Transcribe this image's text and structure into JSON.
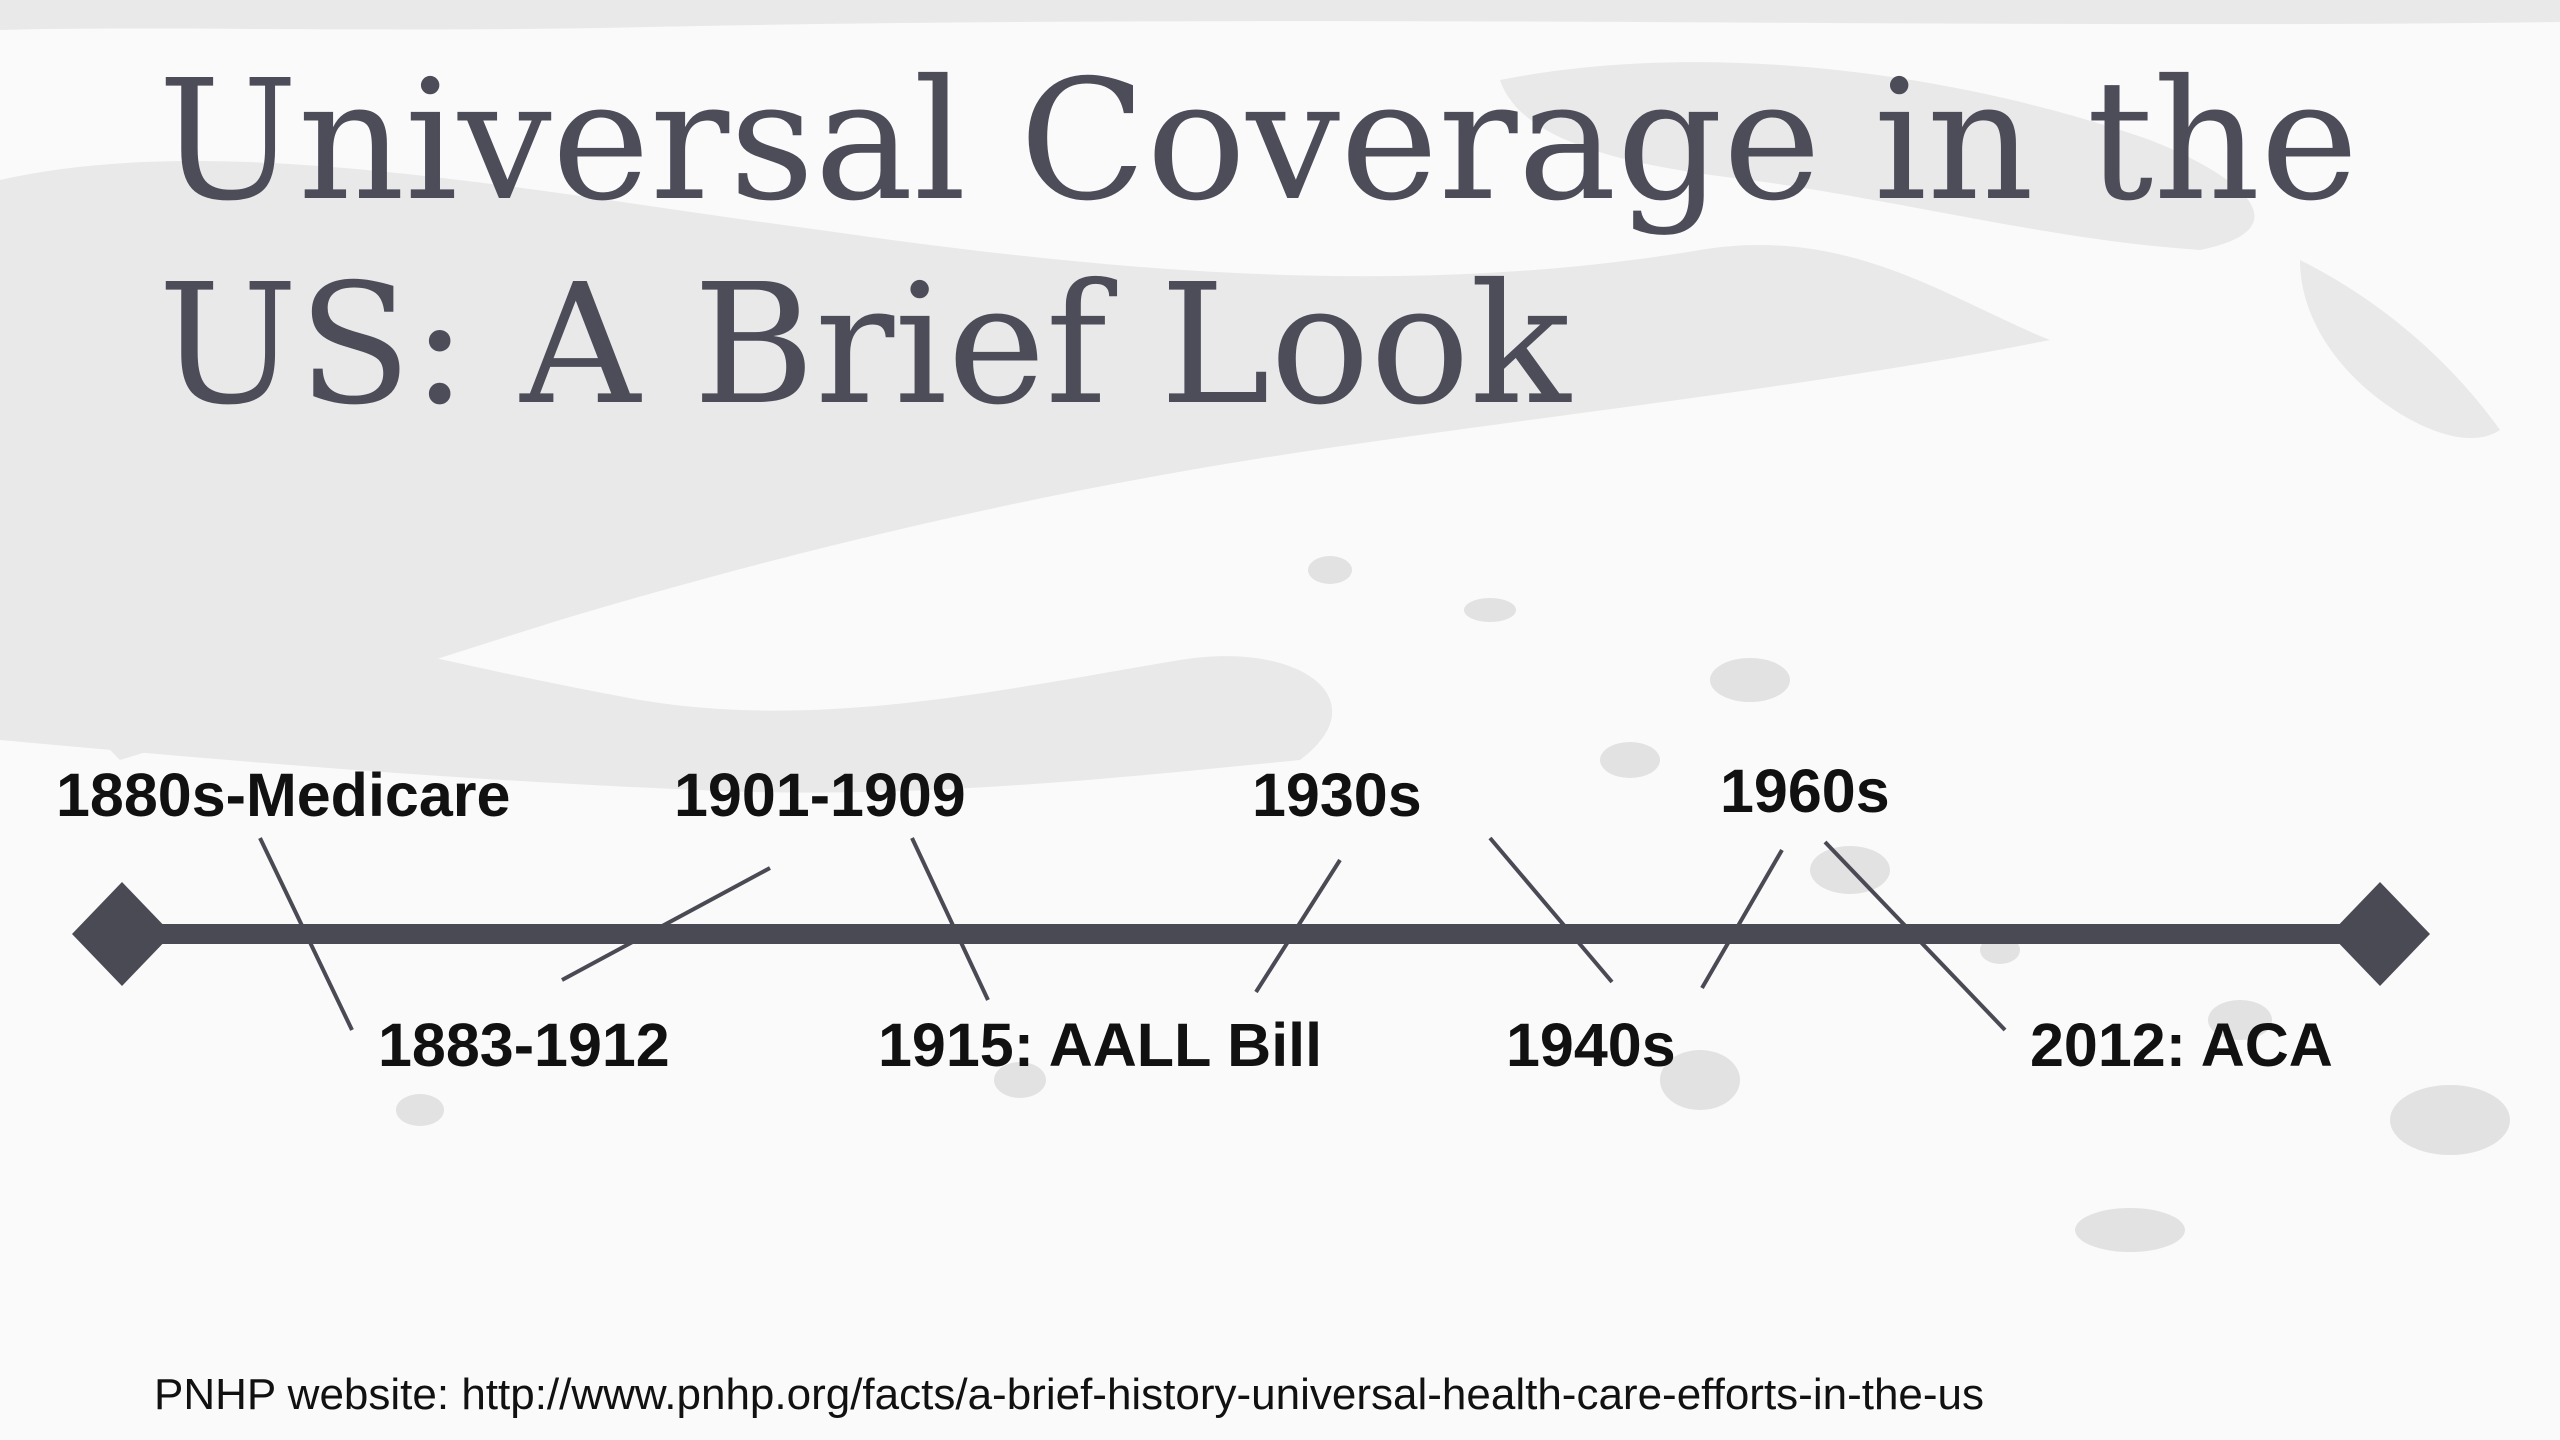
{
  "title": {
    "line1": "Universal Coverage in the",
    "line2": "US: A Brief Look"
  },
  "timeline": {
    "events": [
      {
        "label": "1880s-Medicare",
        "position": "above"
      },
      {
        "label": "1883-1912",
        "position": "below"
      },
      {
        "label": "1901-1909",
        "position": "above"
      },
      {
        "label": "1915: AALL Bill",
        "position": "below"
      },
      {
        "label": "1930s",
        "position": "above"
      },
      {
        "label": "1940s",
        "position": "below"
      },
      {
        "label": "1960s",
        "position": "above"
      },
      {
        "label": "2012: ACA",
        "position": "below"
      }
    ]
  },
  "source": "PNHP website: http://www.pnhp.org/facts/a-brief-history-universal-health-care-efforts-in-the-us",
  "colors": {
    "title": "#4d4d5a",
    "timeline_bar": "#4a4a55",
    "text": "#111111",
    "texture": "#e6e6e6"
  }
}
